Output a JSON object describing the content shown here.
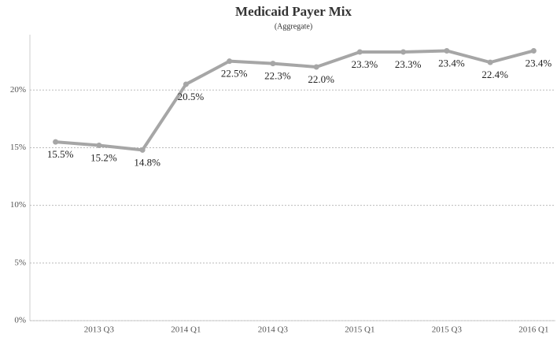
{
  "chart_data": {
    "type": "line",
    "title": "Medicaid Payer Mix",
    "subtitle": "(Aggregate)",
    "categories": [
      null,
      "2013 Q3",
      null,
      "2014 Q1",
      null,
      "2014 Q3",
      null,
      "2015 Q1",
      null,
      "2015 Q3",
      null,
      "2016 Q1"
    ],
    "series": [
      {
        "name": "Medicaid",
        "color": "#a6a6a6",
        "values": [
          15.5,
          15.2,
          14.8,
          20.5,
          22.5,
          22.3,
          22.0,
          23.3,
          23.3,
          23.4,
          22.4,
          23.4
        ],
        "value_labels": [
          "15.5%",
          "15.2%",
          "14.8%",
          "20.5%",
          "22.5%",
          "22.3%",
          "22.0%",
          "23.3%",
          "23.3%",
          "23.4%",
          "22.4%",
          "23.4%"
        ]
      }
    ],
    "ylim": [
      0,
      24.8
    ],
    "yticks": [
      {
        "value": 0,
        "label": "0%"
      },
      {
        "value": 5,
        "label": "5%"
      },
      {
        "value": 10,
        "label": "10%"
      },
      {
        "value": 15,
        "label": "15%"
      },
      {
        "value": 20,
        "label": "20%"
      }
    ],
    "grid": true
  }
}
